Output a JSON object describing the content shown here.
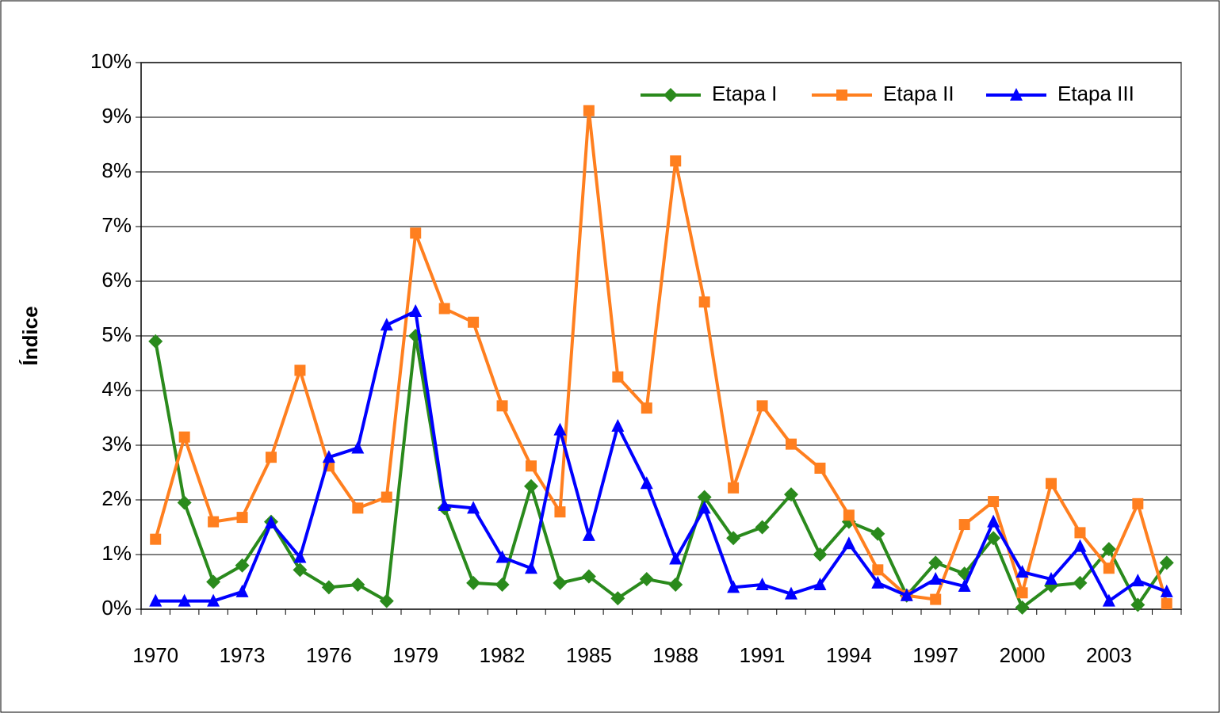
{
  "chart_data": {
    "type": "line",
    "y_label": "Índice",
    "categories": [
      "1970",
      null,
      null,
      "1973",
      null,
      null,
      "1976",
      null,
      null,
      "1979",
      null,
      null,
      "1982",
      null,
      null,
      "1985",
      null,
      null,
      "1988",
      null,
      null,
      "1991",
      null,
      null,
      "1994",
      null,
      null,
      "1997",
      null,
      null,
      "2000",
      null,
      null,
      "2003",
      null,
      null
    ],
    "ylim": [
      0,
      10
    ],
    "yticks": [
      {
        "value": 0,
        "label": "0%"
      },
      {
        "value": 1,
        "label": "1%"
      },
      {
        "value": 2,
        "label": "2%"
      },
      {
        "value": 3,
        "label": "3%"
      },
      {
        "value": 4,
        "label": "4%"
      },
      {
        "value": 5,
        "label": "5%"
      },
      {
        "value": 6,
        "label": "6%"
      },
      {
        "value": 7,
        "label": "7%"
      },
      {
        "value": 8,
        "label": "8%"
      },
      {
        "value": 9,
        "label": "9%"
      },
      {
        "value": 10,
        "label": "10%"
      }
    ],
    "grid": true,
    "legend": "top-right",
    "series": [
      {
        "name": "Etapa I",
        "color": "#2a8a1c",
        "marker": "diamond",
        "values": [
          4.9,
          1.95,
          0.5,
          0.8,
          1.6,
          0.72,
          0.4,
          0.45,
          0.15,
          5.0,
          1.85,
          0.48,
          0.45,
          2.25,
          0.48,
          0.6,
          0.2,
          0.55,
          0.45,
          2.05,
          1.3,
          1.5,
          2.1,
          1.0,
          1.6,
          1.38,
          0.25,
          0.85,
          0.65,
          1.3,
          0.03,
          0.43,
          0.48,
          1.1,
          0.08,
          0.85
        ]
      },
      {
        "name": "Etapa II",
        "color": "#ff7f1f",
        "marker": "square",
        "values": [
          1.28,
          3.15,
          1.6,
          1.68,
          2.78,
          4.37,
          2.62,
          1.85,
          2.05,
          6.88,
          5.5,
          5.25,
          3.72,
          2.62,
          1.78,
          9.12,
          4.25,
          3.68,
          8.2,
          5.62,
          2.22,
          3.72,
          3.02,
          2.58,
          1.72,
          0.72,
          0.25,
          0.18,
          1.55,
          1.97,
          0.3,
          2.3,
          1.4,
          0.75,
          1.93,
          0.1
        ]
      },
      {
        "name": "Etapa III",
        "color": "#0000ff",
        "marker": "triangle",
        "values": [
          0.15,
          0.15,
          0.15,
          0.32,
          1.58,
          0.95,
          2.78,
          2.95,
          5.2,
          5.45,
          1.9,
          1.85,
          0.95,
          0.75,
          3.28,
          1.35,
          3.35,
          2.3,
          0.92,
          1.85,
          0.4,
          0.45,
          0.28,
          0.45,
          1.2,
          0.48,
          0.25,
          0.55,
          0.42,
          1.6,
          0.68,
          0.55,
          1.15,
          0.15,
          0.52,
          0.32
        ]
      }
    ]
  }
}
